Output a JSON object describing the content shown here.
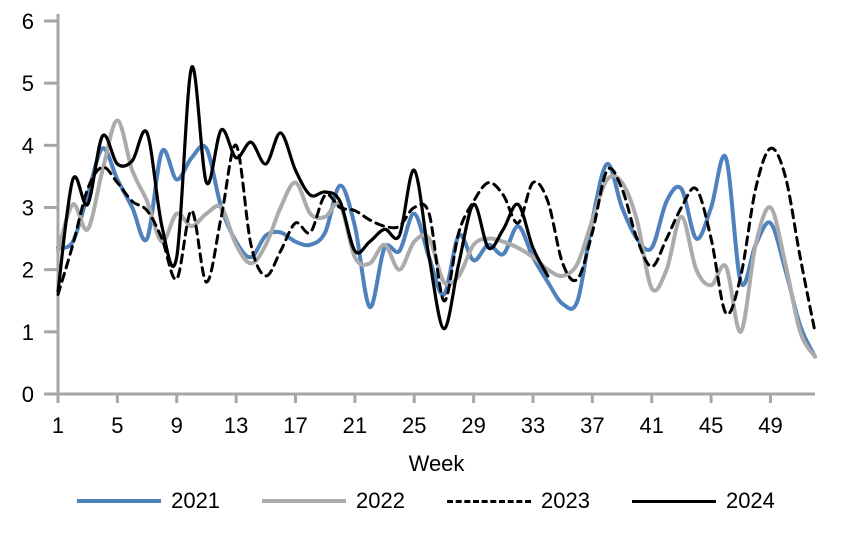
{
  "chart_data": {
    "type": "line",
    "title": "",
    "xlabel": "Week",
    "ylabel": "",
    "ylim": [
      0,
      6
    ],
    "yticks": [
      0,
      1,
      2,
      3,
      4,
      5,
      6
    ],
    "xticks": [
      1,
      5,
      9,
      13,
      17,
      21,
      25,
      29,
      33,
      37,
      41,
      45,
      49
    ],
    "x_start": 1,
    "x_end": 52,
    "grid": false,
    "legend_position": "bottom",
    "axis_color": "#A6A6A6",
    "text_color": "#000000",
    "smoothing": true,
    "series": [
      {
        "name": "2021",
        "color": "#4F81BD",
        "style": "solid",
        "line_width": 4,
        "values": [
          2.35,
          2.45,
          3.2,
          3.95,
          3.45,
          3.0,
          2.5,
          3.9,
          3.45,
          3.8,
          3.95,
          3.0,
          2.45,
          2.2,
          2.55,
          2.6,
          2.45,
          2.4,
          2.6,
          3.35,
          2.7,
          1.4,
          2.35,
          2.3,
          2.9,
          2.2,
          1.6,
          2.55,
          2.15,
          2.4,
          2.25,
          2.7,
          2.2,
          1.8,
          1.45,
          1.5,
          2.8,
          3.7,
          3.0,
          2.5,
          2.35,
          3.1,
          3.3,
          2.5,
          3.0,
          3.8,
          1.8,
          2.4,
          2.75,
          2.0,
          1.1,
          0.6
        ]
      },
      {
        "name": "2022",
        "color": "#ABABAB",
        "style": "solid",
        "line_width": 4,
        "values": [
          2.3,
          3.05,
          2.65,
          3.6,
          4.4,
          3.6,
          3.1,
          2.45,
          2.9,
          2.7,
          2.9,
          3.0,
          2.4,
          2.1,
          2.4,
          3.0,
          3.4,
          2.9,
          2.85,
          3.05,
          2.2,
          2.1,
          2.4,
          2.0,
          2.45,
          2.5,
          1.8,
          1.9,
          2.4,
          2.5,
          2.45,
          2.35,
          2.2,
          2.0,
          1.9,
          2.1,
          2.8,
          3.45,
          3.4,
          2.8,
          1.7,
          2.0,
          2.85,
          2.0,
          1.75,
          2.05,
          1.0,
          2.4,
          3.0,
          2.1,
          1.0,
          0.6
        ]
      },
      {
        "name": "2023",
        "color": "#000000",
        "style": "dashed",
        "line_width": 3,
        "values": [
          1.6,
          2.4,
          3.3,
          3.65,
          3.4,
          3.1,
          2.95,
          2.5,
          1.85,
          2.95,
          1.8,
          2.85,
          4.0,
          2.4,
          1.9,
          2.3,
          2.75,
          2.6,
          3.2,
          3.0,
          2.95,
          2.8,
          2.7,
          2.7,
          3.0,
          2.9,
          1.5,
          2.6,
          3.1,
          3.4,
          3.2,
          2.75,
          3.4,
          3.1,
          2.1,
          1.85,
          2.6,
          3.6,
          3.3,
          2.5,
          2.05,
          2.5,
          3.0,
          3.3,
          2.5,
          1.3,
          1.9,
          3.3,
          3.95,
          3.5,
          2.2,
          1.0
        ]
      },
      {
        "name": "2024",
        "color": "#000000",
        "style": "solid",
        "line_width": 3.2,
        "values": [
          1.65,
          3.45,
          3.05,
          4.15,
          3.7,
          3.75,
          4.2,
          2.7,
          2.2,
          5.25,
          3.4,
          4.25,
          3.8,
          4.05,
          3.7,
          4.2,
          3.6,
          3.2,
          3.25,
          3.1,
          2.3,
          2.45,
          2.65,
          2.55,
          3.6,
          2.2,
          1.05,
          2.1,
          3.05,
          2.35,
          2.65,
          3.05,
          2.35,
          1.9
        ]
      }
    ]
  }
}
